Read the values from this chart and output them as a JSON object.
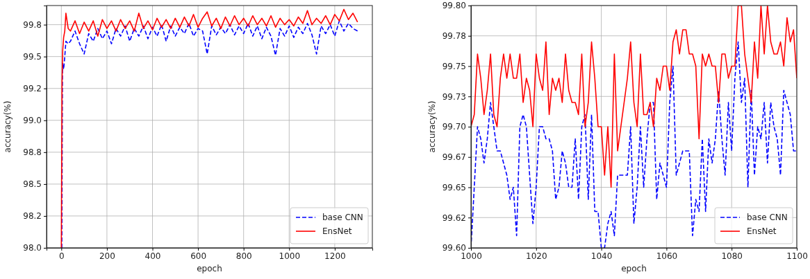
{
  "chart_data": [
    {
      "type": "line",
      "xlabel": "epoch",
      "ylabel": "accuracy(%)",
      "xlim": [
        -65,
        1365
      ],
      "xticks": [
        0,
        200,
        400,
        600,
        800,
        1000,
        1200
      ],
      "ylim": [
        98.0,
        99.9
      ],
      "yticks": [
        {
          "value": 98.0,
          "label": "98.0"
        },
        {
          "value": 98.25,
          "label": "98.2"
        },
        98.5,
        {
          "value": 98.75,
          "label": "98.8"
        },
        {
          "value": 99.0,
          "label": "99.0"
        },
        {
          "value": 99.25,
          "label": "99.2"
        },
        99.5,
        {
          "value": 99.75,
          "label": "99.8"
        }
      ],
      "grid": true,
      "legend": "bottom right",
      "series": [
        {
          "name": "base CNN",
          "color": "#0000ff",
          "line_style": "dashed",
          "x": [
            2,
            5,
            10,
            15,
            20,
            30,
            40,
            60,
            80,
            100,
            120,
            140,
            160,
            180,
            200,
            220,
            240,
            260,
            280,
            300,
            320,
            340,
            360,
            380,
            400,
            420,
            440,
            460,
            480,
            500,
            520,
            540,
            560,
            580,
            600,
            620,
            640,
            660,
            680,
            700,
            720,
            740,
            760,
            780,
            800,
            820,
            840,
            860,
            880,
            900,
            920,
            940,
            960,
            980,
            1000,
            1020,
            1040,
            1060,
            1080,
            1100,
            1120,
            1140,
            1160,
            1180,
            1200,
            1220,
            1240,
            1260,
            1280,
            1300
          ],
          "values": [
            98.0,
            99.45,
            99.4,
            99.5,
            99.62,
            99.6,
            99.62,
            99.7,
            99.6,
            99.52,
            99.68,
            99.62,
            99.72,
            99.64,
            99.7,
            99.6,
            99.72,
            99.66,
            99.74,
            99.62,
            99.72,
            99.66,
            99.74,
            99.64,
            99.73,
            99.66,
            99.75,
            99.62,
            99.74,
            99.66,
            99.73,
            99.68,
            99.76,
            99.66,
            99.72,
            99.7,
            99.52,
            99.74,
            99.67,
            99.73,
            99.68,
            99.75,
            99.67,
            99.74,
            99.68,
            99.76,
            99.66,
            99.74,
            99.64,
            99.73,
            99.66,
            99.51,
            99.72,
            99.66,
            99.74,
            99.65,
            99.73,
            99.68,
            99.76,
            99.67,
            99.52,
            99.74,
            99.68,
            99.75,
            99.66,
            99.78,
            99.7,
            99.76,
            99.72,
            99.7
          ]
        },
        {
          "name": "EnsNet",
          "color": "#ff0000",
          "line_style": "solid",
          "x": [
            0,
            3,
            6,
            10,
            15,
            20,
            30,
            40,
            60,
            80,
            100,
            120,
            140,
            160,
            180,
            200,
            220,
            240,
            260,
            280,
            300,
            320,
            340,
            360,
            380,
            400,
            420,
            440,
            460,
            480,
            500,
            520,
            540,
            560,
            580,
            600,
            620,
            640,
            660,
            680,
            700,
            720,
            740,
            760,
            780,
            800,
            820,
            840,
            860,
            880,
            900,
            920,
            940,
            960,
            980,
            1000,
            1020,
            1040,
            1060,
            1080,
            1100,
            1120,
            1140,
            1160,
            1180,
            1200,
            1220,
            1240,
            1260,
            1280,
            1300
          ],
          "values": [
            98.0,
            99.3,
            99.55,
            99.65,
            99.7,
            99.84,
            99.72,
            99.7,
            99.78,
            99.68,
            99.77,
            99.7,
            99.78,
            99.66,
            99.79,
            99.72,
            99.78,
            99.7,
            99.79,
            99.72,
            99.78,
            99.7,
            99.84,
            99.72,
            99.78,
            99.71,
            99.8,
            99.73,
            99.79,
            99.72,
            99.8,
            99.73,
            99.81,
            99.74,
            99.83,
            99.73,
            99.8,
            99.85,
            99.74,
            99.8,
            99.72,
            99.81,
            99.74,
            99.82,
            99.75,
            99.8,
            99.74,
            99.82,
            99.75,
            99.8,
            99.74,
            99.82,
            99.73,
            99.8,
            99.75,
            99.79,
            99.74,
            99.81,
            99.76,
            99.86,
            99.75,
            99.8,
            99.76,
            99.82,
            99.75,
            99.83,
            99.78,
            99.87,
            99.79,
            99.84,
            99.77
          ]
        }
      ]
    },
    {
      "type": "line",
      "xlabel": "epoch",
      "ylabel": "accuracy(%)",
      "xlim": [
        1000,
        1100
      ],
      "xticks": [
        1000,
        1020,
        1040,
        1060,
        1080,
        1100
      ],
      "ylim": [
        99.6,
        99.8
      ],
      "yticks": [
        {
          "value": 99.6,
          "label": "99.60"
        },
        {
          "value": 99.625,
          "label": "99.62"
        },
        {
          "value": 99.65,
          "label": "99.65"
        },
        {
          "value": 99.675,
          "label": "99.67"
        },
        {
          "value": 99.7,
          "label": "99.70"
        },
        {
          "value": 99.725,
          "label": "99.73"
        },
        {
          "value": 99.75,
          "label": "99.75"
        },
        {
          "value": 99.775,
          "label": "99.78"
        },
        {
          "value": 99.8,
          "label": "99.80"
        }
      ],
      "grid": true,
      "legend": "bottom right",
      "x": [
        1000,
        1001,
        1002,
        1003,
        1004,
        1005,
        1006,
        1007,
        1008,
        1009,
        1010,
        1011,
        1012,
        1013,
        1014,
        1015,
        1016,
        1017,
        1018,
        1019,
        1020,
        1021,
        1022,
        1023,
        1024,
        1025,
        1026,
        1027,
        1028,
        1029,
        1030,
        1031,
        1032,
        1033,
        1034,
        1035,
        1036,
        1037,
        1038,
        1039,
        1040,
        1041,
        1042,
        1043,
        1044,
        1045,
        1046,
        1047,
        1048,
        1049,
        1050,
        1051,
        1052,
        1053,
        1054,
        1055,
        1056,
        1057,
        1058,
        1059,
        1060,
        1061,
        1062,
        1063,
        1064,
        1065,
        1066,
        1067,
        1068,
        1069,
        1070,
        1071,
        1072,
        1073,
        1074,
        1075,
        1076,
        1077,
        1078,
        1079,
        1080,
        1081,
        1082,
        1083,
        1084,
        1085,
        1086,
        1087,
        1088,
        1089,
        1090,
        1091,
        1092,
        1093,
        1094,
        1095,
        1096,
        1097,
        1098,
        1099,
        1100
      ],
      "series": [
        {
          "name": "base CNN",
          "color": "#0000ff",
          "line_style": "dashed",
          "values": [
            99.6,
            99.65,
            99.7,
            99.69,
            99.67,
            99.69,
            99.72,
            99.7,
            99.68,
            99.68,
            99.67,
            99.66,
            99.64,
            99.65,
            99.61,
            99.7,
            99.71,
            99.7,
            99.66,
            99.62,
            99.65,
            99.7,
            99.7,
            99.69,
            99.69,
            99.68,
            99.64,
            99.65,
            99.68,
            99.67,
            99.65,
            99.65,
            99.69,
            99.64,
            99.7,
            99.71,
            99.64,
            99.71,
            99.63,
            99.63,
            99.6,
            99.6,
            99.62,
            99.63,
            99.61,
            99.66,
            99.66,
            99.66,
            99.66,
            99.7,
            99.62,
            99.65,
            99.7,
            99.65,
            99.69,
            99.72,
            99.72,
            99.64,
            99.67,
            99.66,
            99.65,
            99.72,
            99.75,
            99.66,
            99.67,
            99.68,
            99.68,
            99.68,
            99.61,
            99.64,
            99.63,
            99.69,
            99.63,
            99.69,
            99.67,
            99.69,
            99.73,
            99.69,
            99.66,
            99.72,
            99.68,
            99.74,
            99.77,
            99.72,
            99.74,
            99.65,
            99.73,
            99.66,
            99.7,
            99.69,
            99.72,
            99.67,
            99.72,
            99.7,
            99.69,
            99.66,
            99.73,
            99.72,
            99.71,
            99.68,
            99.68
          ]
        },
        {
          "name": "EnsNet",
          "color": "#ff0000",
          "line_style": "solid",
          "values": [
            99.7,
            99.71,
            99.76,
            99.74,
            99.71,
            99.73,
            99.76,
            99.71,
            99.7,
            99.74,
            99.76,
            99.74,
            99.76,
            99.74,
            99.74,
            99.76,
            99.72,
            99.74,
            99.73,
            99.7,
            99.76,
            99.74,
            99.73,
            99.77,
            99.71,
            99.74,
            99.73,
            99.74,
            99.72,
            99.76,
            99.73,
            99.72,
            99.72,
            99.71,
            99.76,
            99.7,
            99.72,
            99.77,
            99.74,
            99.7,
            99.7,
            99.66,
            99.7,
            99.65,
            99.76,
            99.68,
            99.7,
            99.72,
            99.74,
            99.77,
            99.72,
            99.7,
            99.76,
            99.71,
            99.71,
            99.72,
            99.7,
            99.74,
            99.73,
            99.75,
            99.75,
            99.73,
            99.77,
            99.78,
            99.76,
            99.78,
            99.78,
            99.76,
            99.76,
            99.75,
            99.69,
            99.76,
            99.75,
            99.76,
            99.75,
            99.75,
            99.72,
            99.76,
            99.76,
            99.74,
            99.75,
            99.75,
            99.8,
            99.8,
            99.76,
            99.74,
            99.72,
            99.77,
            99.74,
            99.8,
            99.76,
            99.8,
            99.77,
            99.76,
            99.76,
            99.77,
            99.75,
            99.79,
            99.77,
            99.78,
            99.74
          ]
        }
      ]
    }
  ]
}
